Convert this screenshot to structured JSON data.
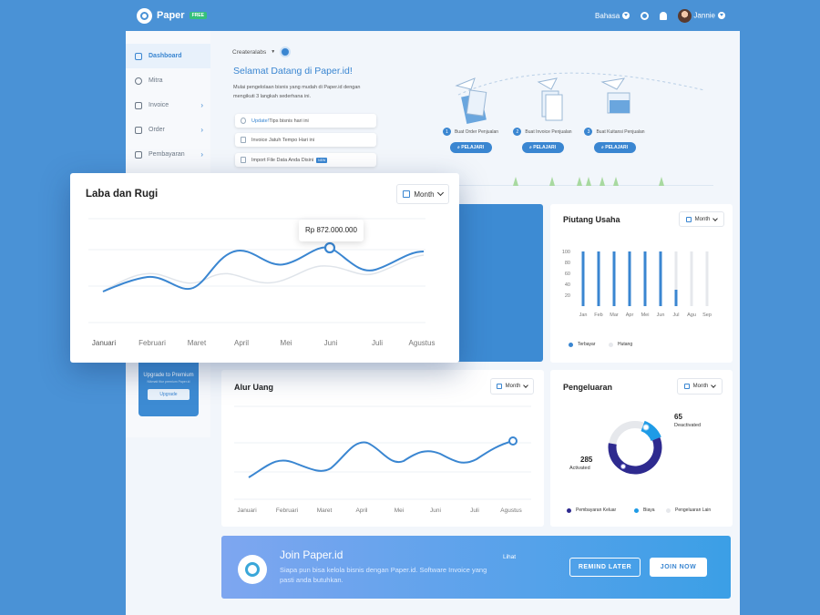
{
  "topbar": {
    "brand": "Paper",
    "badge": "FREE",
    "language": "Bahasa",
    "user": "Jannie"
  },
  "sidebar": {
    "items": [
      {
        "label": "Dashboard",
        "chevron": false
      },
      {
        "label": "Mitra",
        "chevron": false
      },
      {
        "label": "Invoice",
        "chevron": true
      },
      {
        "label": "Order",
        "chevron": true
      },
      {
        "label": "Pembayaran",
        "chevron": true
      }
    ],
    "chevron_glyph": "›",
    "premium": {
      "title": "Upgrade to Premium",
      "subtitle": "Nikmati fitur premium Paper.id",
      "button": "Upgrade"
    }
  },
  "welcome": {
    "account": "Createralabs",
    "title": "Selamat Datang di Paper.id!",
    "description": "Mulai pengelolaan bisnis yang mudah di Paper.id dengan mengikuti 3 langkah sederhana ini.",
    "tips": [
      {
        "highlight": "Update!",
        "text": " Tips bisnis hari ini",
        "badge": ""
      },
      {
        "highlight": "",
        "text": "Invoice Jatuh Tempo Hari ini",
        "badge": ""
      },
      {
        "highlight": "",
        "text": "Import File Data Anda Disini",
        "badge": "NEW"
      }
    ],
    "steps": [
      {
        "number": "1",
        "label": "Buat Order Penjualan",
        "button": "PELAJARI"
      },
      {
        "number": "2",
        "label": "Buat Invoice Penjualan",
        "button": "PELAJARI"
      },
      {
        "number": "3",
        "label": "Buat Kuitansi Penjualan",
        "button": "PELAJARI"
      }
    ]
  },
  "month_label": "Month",
  "laba": {
    "title": "Laba dan Rugi",
    "tooltip": "Rp 872.000.000",
    "categories": [
      "Januari",
      "Februari",
      "Maret",
      "April",
      "Mei",
      "Juni",
      "Juli",
      "Agustus"
    ]
  },
  "piutang": {
    "title": "Piutang Usaha",
    "legend": [
      "Terbayar",
      "Hutang"
    ],
    "colors": {
      "paid": "#3a86d1",
      "debt": "#e6e8ec"
    }
  },
  "alur": {
    "title": "Alur Uang",
    "categories": [
      "Januari",
      "Februari",
      "Maret",
      "April",
      "Mei",
      "Juni",
      "Juli",
      "Agustus"
    ]
  },
  "pengeluaran": {
    "title": "Pengeluaran",
    "deactivated_value": "65",
    "deactivated_label": "Deactivated",
    "activated_value": "285",
    "activated_label": "Activated",
    "legend": [
      "Pembayaran Keluar",
      "Biaya",
      "Pengeluaran Lain"
    ],
    "colors": {
      "primary": "#2e2a8f",
      "secondary": "#1e9be6",
      "other": "#e6e8ec"
    }
  },
  "banner": {
    "title": "Join Paper.id",
    "subtitle": "Siapa pun bisa kelola bisnis dengan Paper.id. Software Invoice yang pasti anda butuhkan.",
    "link": "Lihat",
    "remind": "REMIND LATER",
    "join": "JOIN NOW"
  },
  "chart_data": [
    {
      "type": "bar",
      "title": "Piutang Usaha",
      "categories": [
        "Jan",
        "Feb",
        "Mar",
        "Apr",
        "Mei",
        "Jun",
        "Jul",
        "Agu",
        "Sep"
      ],
      "ylim": [
        0,
        100
      ],
      "yticks": [
        20,
        40,
        60,
        80,
        100
      ],
      "series": [
        {
          "name": "Terbayar",
          "values": [
            100,
            100,
            100,
            100,
            100,
            100,
            30,
            0,
            0
          ]
        },
        {
          "name": "Hutang",
          "values": [
            0,
            0,
            0,
            0,
            0,
            0,
            70,
            100,
            100
          ]
        }
      ]
    },
    {
      "type": "pie",
      "title": "Pengeluaran",
      "labels": [
        "Pembayaran Keluar",
        "Biaya",
        "Pengeluaran Lain"
      ],
      "values": [
        285,
        65,
        0
      ]
    }
  ]
}
